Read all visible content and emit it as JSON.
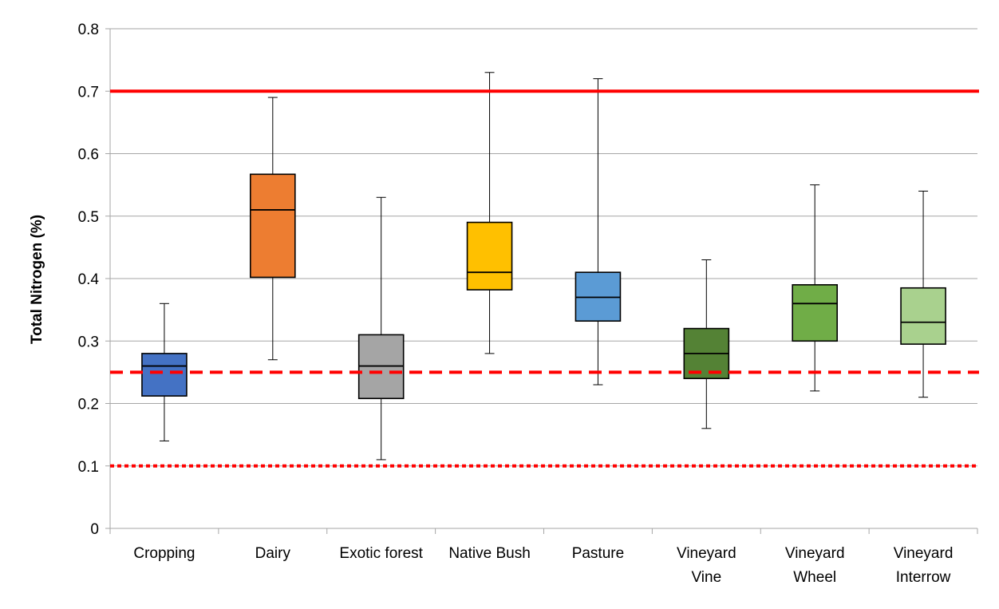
{
  "chart_data": {
    "type": "box",
    "title": "",
    "xlabel": "",
    "ylabel": "Total Nitrogen (%)",
    "ylim": [
      0,
      0.8
    ],
    "yticks": [
      "0",
      "0.1",
      "0.2",
      "0.3",
      "0.4",
      "0.5",
      "0.6",
      "0.7",
      "0.8"
    ],
    "grid": true,
    "categories": [
      {
        "lines": [
          "Cropping"
        ],
        "color": "#4472C4",
        "min": 0.14,
        "q1": 0.212,
        "median": 0.26,
        "q3": 0.28,
        "max": 0.36
      },
      {
        "lines": [
          "Dairy"
        ],
        "color": "#ED7D31",
        "min": 0.27,
        "q1": 0.402,
        "median": 0.51,
        "q3": 0.567,
        "max": 0.69
      },
      {
        "lines": [
          "Exotic forest"
        ],
        "color": "#A5A5A5",
        "min": 0.11,
        "q1": 0.208,
        "median": 0.26,
        "q3": 0.31,
        "max": 0.53
      },
      {
        "lines": [
          "Native Bush"
        ],
        "color": "#FFC000",
        "min": 0.28,
        "q1": 0.382,
        "median": 0.41,
        "q3": 0.49,
        "max": 0.73
      },
      {
        "lines": [
          "Pasture"
        ],
        "color": "#5B9BD5",
        "min": 0.23,
        "q1": 0.332,
        "median": 0.37,
        "q3": 0.41,
        "max": 0.72
      },
      {
        "lines": [
          "Vineyard",
          "Vine"
        ],
        "color": "#548235",
        "min": 0.16,
        "q1": 0.24,
        "median": 0.28,
        "q3": 0.32,
        "max": 0.43
      },
      {
        "lines": [
          "Vineyard",
          "Wheel"
        ],
        "color": "#70AD47",
        "min": 0.22,
        "q1": 0.3,
        "median": 0.36,
        "q3": 0.39,
        "max": 0.55
      },
      {
        "lines": [
          "Vineyard",
          "Interrow"
        ],
        "color": "#A9D18E",
        "min": 0.21,
        "q1": 0.295,
        "median": 0.33,
        "q3": 0.385,
        "max": 0.54
      }
    ],
    "reference_lines": [
      {
        "value": 0.7,
        "style": "solid",
        "color": "#FF0000"
      },
      {
        "value": 0.25,
        "style": "dashed",
        "color": "#FF0000"
      },
      {
        "value": 0.1,
        "style": "dotted",
        "color": "#FF0000"
      }
    ]
  }
}
